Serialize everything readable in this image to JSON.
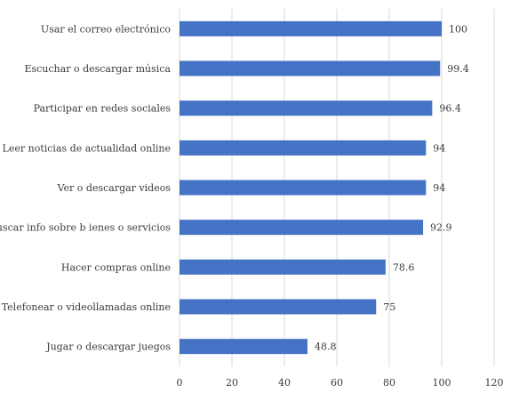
{
  "chart_data": {
    "type": "bar",
    "orientation": "horizontal",
    "categories": [
      "Usar el correo electrónico",
      "Escuchar o descargar música",
      "Participar en redes sociales",
      "Leer noticias de actualidad online",
      "Ver o descargar videos",
      "Buscar info sobre b ienes o servicios",
      "Hacer compras online",
      "Telefonear o videollamadas online",
      "Jugar o descargar juegos"
    ],
    "values": [
      100,
      99.4,
      96.4,
      94,
      94,
      92.9,
      78.6,
      75,
      48.8
    ],
    "value_labels": [
      "100",
      "99.4",
      "96.4",
      "94",
      "94",
      "92.9",
      "78.6",
      "75",
      "48.8"
    ],
    "xlim": [
      0,
      120
    ],
    "xticks": [
      "0",
      "20",
      "40",
      "60",
      "80",
      "100",
      "120"
    ],
    "grid": "vertical",
    "bar_color": "#4472C4"
  }
}
